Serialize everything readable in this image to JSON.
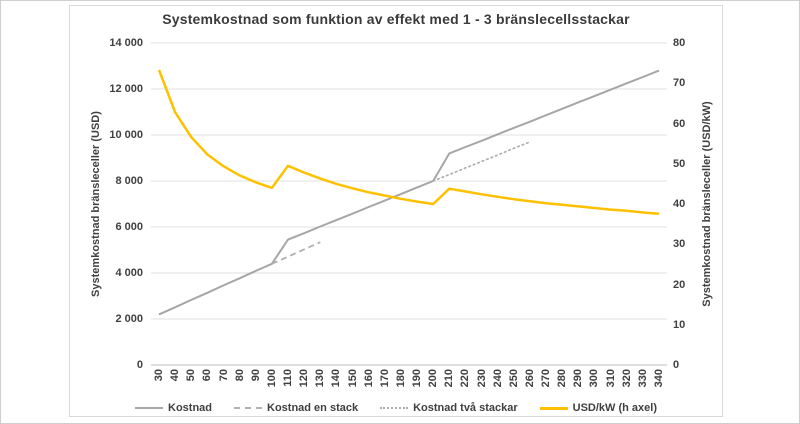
{
  "chart_data": {
    "type": "line",
    "title": "Systemkostnad som funktion av effekt med 1 - 3 bränslecellsstackar",
    "grid": "horizontal",
    "legend_position": "bottom",
    "x_axis": {
      "min": 30,
      "max": 340,
      "step": 10,
      "ticks": [
        30,
        40,
        50,
        60,
        70,
        80,
        90,
        100,
        110,
        120,
        130,
        140,
        150,
        160,
        170,
        180,
        190,
        200,
        210,
        220,
        230,
        240,
        250,
        260,
        270,
        280,
        290,
        300,
        310,
        320,
        330,
        340
      ]
    },
    "y_left": {
      "label": "Systemkostnad bränsleceller (USD)",
      "min": 0,
      "max": 14000,
      "step": 2000,
      "tick_labels": [
        "0",
        "2 000",
        "4 000",
        "6 000",
        "8 000",
        "10 000",
        "12 000",
        "14 000"
      ]
    },
    "y_right": {
      "label": "Systemkostnad bränsleceller (USD/kW)",
      "min": 0,
      "max": 80,
      "step": 10,
      "tick_labels": [
        "0",
        "10",
        "20",
        "30",
        "40",
        "50",
        "60",
        "70",
        "80"
      ]
    },
    "series": [
      {
        "name": "Kostnad",
        "axis": "left",
        "style": "solid",
        "color": "#a6a6a6",
        "width": 2,
        "x": [
          30,
          40,
          50,
          60,
          70,
          80,
          90,
          100,
          110,
          120,
          130,
          140,
          150,
          160,
          170,
          180,
          190,
          200,
          210,
          220,
          230,
          240,
          250,
          260,
          270,
          280,
          290,
          300,
          310,
          320,
          330,
          340
        ],
        "values": [
          2200,
          2510,
          2830,
          3140,
          3460,
          3770,
          4090,
          4400,
          5450,
          5730,
          6020,
          6300,
          6580,
          6870,
          7150,
          7430,
          7720,
          8000,
          9200,
          9480,
          9750,
          10030,
          10310,
          10580,
          10860,
          11140,
          11420,
          11690,
          11970,
          12250,
          12520,
          12800
        ]
      },
      {
        "name": "Kostnad en stack",
        "axis": "left",
        "style": "dashed",
        "color": "#b0b0b0",
        "width": 1.8,
        "x": [
          100,
          110,
          120,
          130
        ],
        "values": [
          4400,
          4710,
          5030,
          5340
        ]
      },
      {
        "name": "Kostnad två stackar",
        "axis": "left",
        "style": "dotted",
        "color": "#ababab",
        "width": 1.6,
        "x": [
          200,
          210,
          220,
          230,
          240,
          250,
          260
        ],
        "values": [
          8000,
          8280,
          8570,
          8850,
          9130,
          9420,
          9700
        ]
      },
      {
        "name": "USD/kW (h axel)",
        "axis": "right",
        "style": "solid",
        "color": "#ffc000",
        "width": 2.5,
        "x": [
          30,
          40,
          50,
          60,
          70,
          80,
          90,
          100,
          110,
          120,
          130,
          140,
          150,
          160,
          170,
          180,
          190,
          200,
          210,
          220,
          230,
          240,
          250,
          260,
          270,
          280,
          290,
          300,
          310,
          320,
          330,
          340
        ],
        "values": [
          73.3,
          62.8,
          56.6,
          52.3,
          49.4,
          47.1,
          45.4,
          44.0,
          49.5,
          47.8,
          46.3,
          45.0,
          43.9,
          42.9,
          42.1,
          41.3,
          40.6,
          40.0,
          43.8,
          43.1,
          42.4,
          41.8,
          41.2,
          40.7,
          40.2,
          39.8,
          39.4,
          39.0,
          38.6,
          38.3,
          37.9,
          37.6
        ]
      }
    ],
    "legend": [
      "Kostnad",
      "Kostnad en stack",
      "Kostnad två stackar",
      "USD/kW (h axel)"
    ],
    "colors": {
      "gridline": "#e2e2e2",
      "axis_line": "#bfbfbf",
      "text": "#404040",
      "frame_border": "#d9d9d9"
    }
  }
}
